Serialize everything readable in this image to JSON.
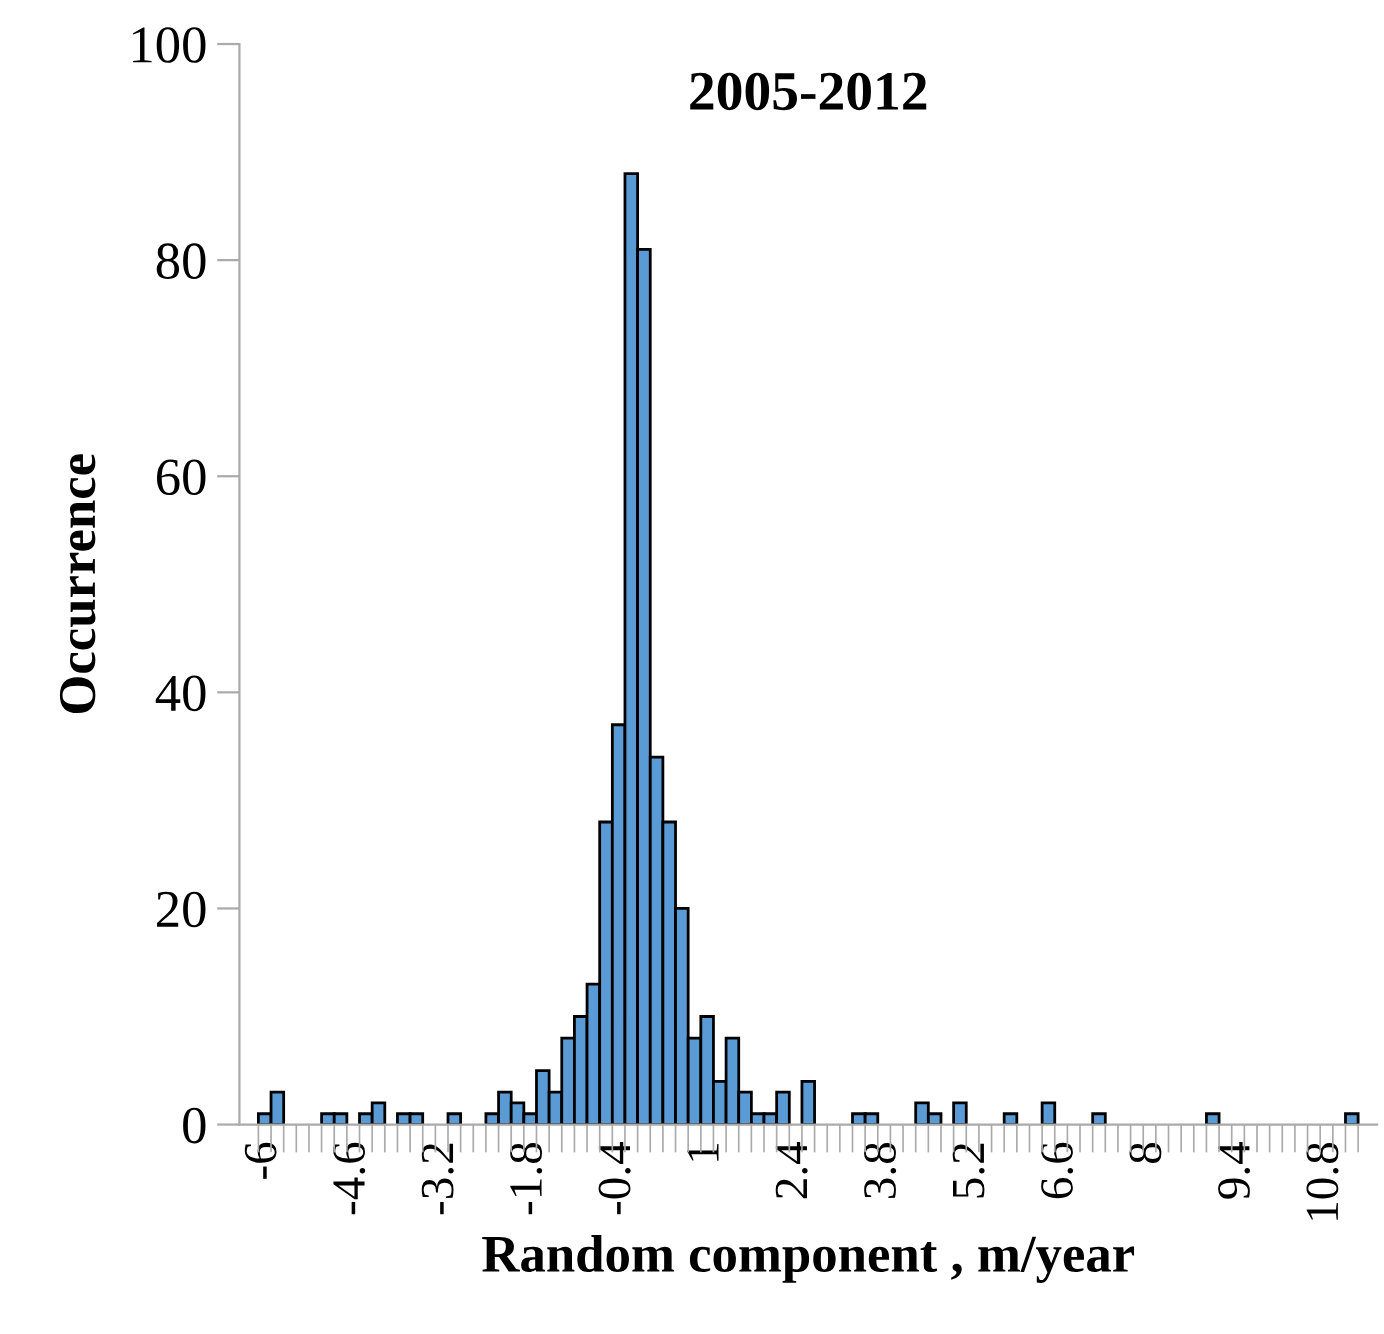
{
  "chart_data": {
    "type": "bar",
    "title": "2005-2012",
    "xlabel": "Random component , m/year",
    "ylabel": "Occurrence",
    "categories": [
      "-6",
      null,
      null,
      null,
      null,
      null,
      null,
      "-4.6",
      null,
      null,
      null,
      null,
      null,
      null,
      "-3.2",
      null,
      null,
      null,
      null,
      null,
      null,
      "-1.8",
      null,
      null,
      null,
      null,
      null,
      null,
      "-0.4",
      null,
      null,
      null,
      null,
      null,
      null,
      "1",
      null,
      null,
      null,
      null,
      null,
      null,
      "2.4",
      null,
      null,
      null,
      null,
      null,
      null,
      "3.8",
      null,
      null,
      null,
      null,
      null,
      null,
      "5.2",
      null,
      null,
      null,
      null,
      null,
      null,
      "6.6",
      null,
      null,
      null,
      null,
      null,
      null,
      "8",
      null,
      null,
      null,
      null,
      null,
      null,
      "9.4",
      null,
      null,
      null,
      null,
      null,
      null,
      "10.8",
      null,
      null
    ],
    "values": [
      1,
      3,
      0,
      0,
      0,
      1,
      1,
      0,
      1,
      2,
      0,
      1,
      1,
      0,
      0,
      1,
      0,
      0,
      1,
      3,
      2,
      1,
      5,
      3,
      8,
      10,
      13,
      28,
      37,
      88,
      81,
      34,
      28,
      20,
      8,
      10,
      4,
      8,
      3,
      1,
      1,
      3,
      0,
      4,
      0,
      0,
      0,
      1,
      1,
      0,
      0,
      0,
      2,
      1,
      0,
      2,
      0,
      0,
      0,
      1,
      0,
      0,
      2,
      0,
      0,
      0,
      1,
      0,
      0,
      0,
      0,
      0,
      0,
      0,
      0,
      1,
      0,
      0,
      0,
      0,
      0,
      0,
      0,
      0,
      0,
      0,
      1
    ],
    "color": "#5b9bd5",
    "ylim": [
      0,
      100
    ],
    "yticks": [
      0,
      20,
      40,
      60,
      80,
      100
    ],
    "grid": false,
    "legend": false
  }
}
